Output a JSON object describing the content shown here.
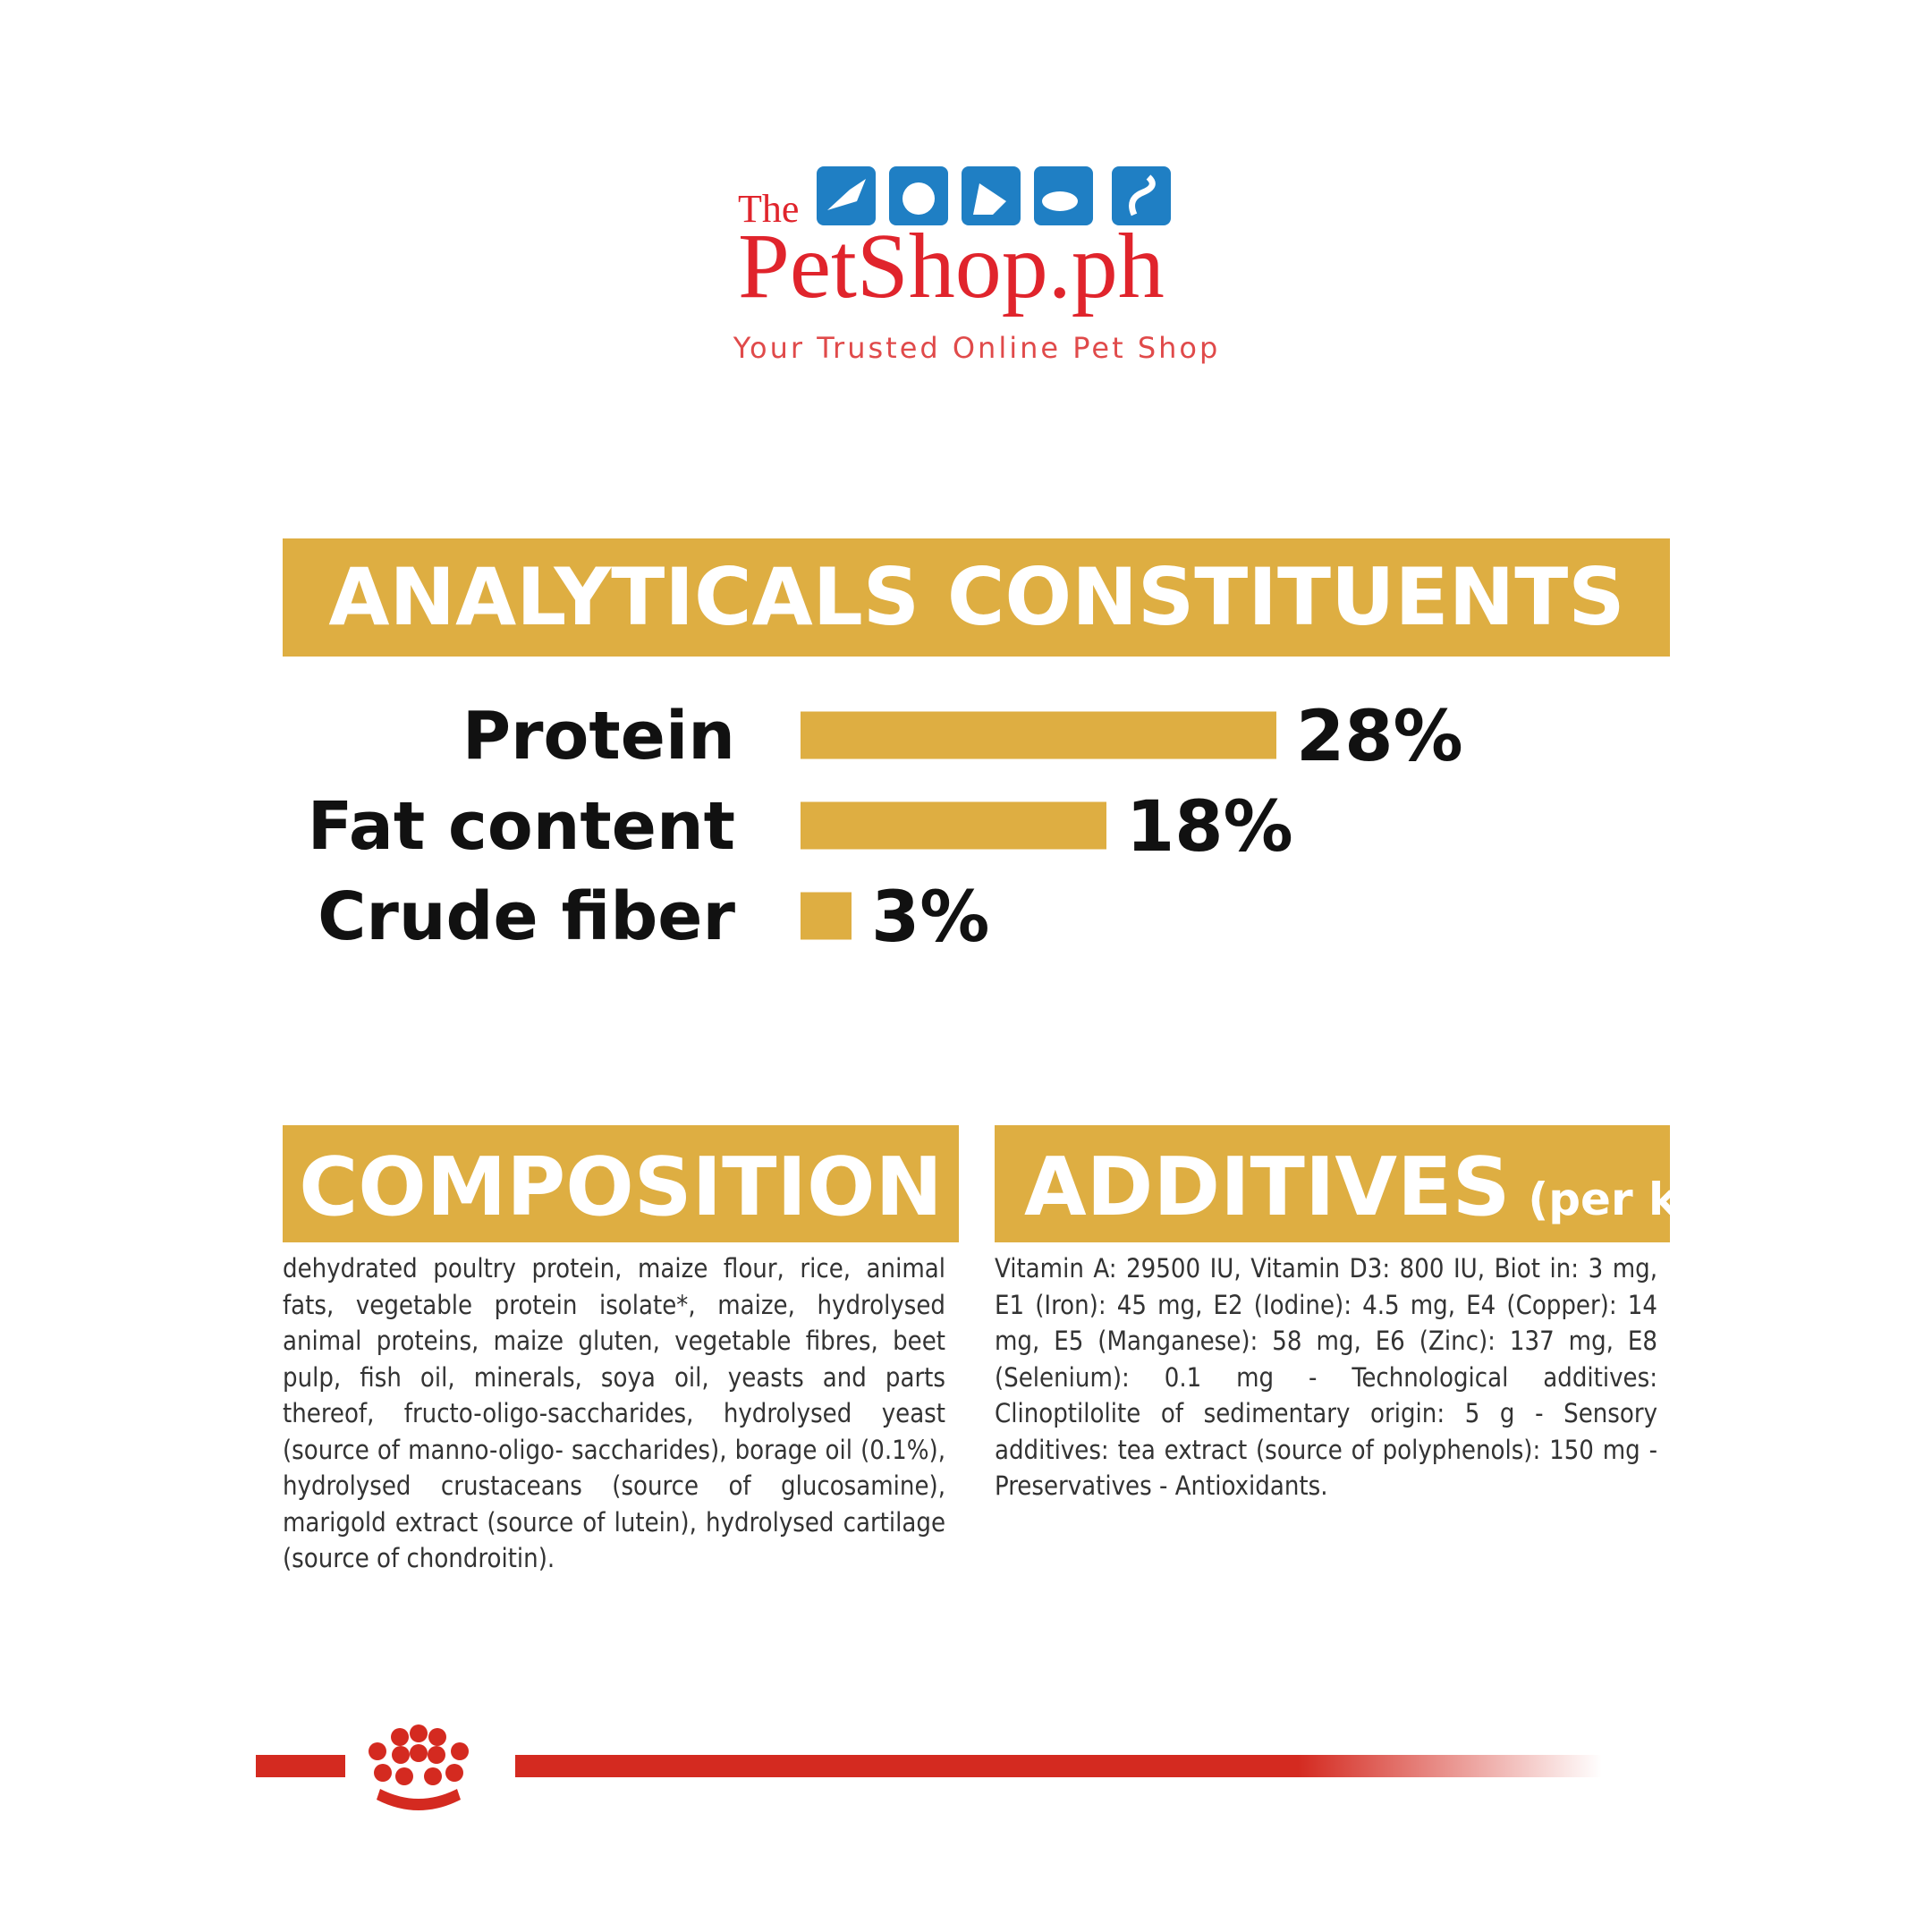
{
  "header": {
    "brand_prefix": "The",
    "brand": "PetShop.ph",
    "tagline": "Your Trusted Online Pet Shop"
  },
  "chart_data": {
    "type": "bar",
    "orientation": "horizontal",
    "title": "ANALYTICALS CONSTITUENTS",
    "categories": [
      "Protein",
      "Fat content",
      "Crude fiber"
    ],
    "values": [
      28,
      18,
      3
    ],
    "value_labels": [
      "28%",
      "18%",
      "3%"
    ],
    "color": "#deae42"
  },
  "composition": {
    "title": "COMPOSITION",
    "text": "dehydrated poultry protein, maize flour, rice, animal fats, vegetable protein isolate*, maize, hydrolysed animal proteins, maize gluten, vegetable fibres, beet pulp, fish oil, minerals, soya oil, yeasts and parts thereof, fructo-oligo-saccharides, hydrolysed yeast (source of manno-oligo- saccharides), borage oil (0.1%), hydrolysed crustaceans (source of glucosamine), marigold extract (source of lutein), hydrolysed cartilage (source of chondroitin)."
  },
  "additives": {
    "title": "ADDITIVES",
    "title_note": "(per kg)",
    "text": "Vitamin A: 29500 IU, Vitamin D3: 800 IU, Biot in: 3 mg, E1 (Iron): 45 mg, E2 (Iodine): 4.5 mg, E4 (Copper): 14 mg, E5 (Manganese): 58 mg, E6 (Zinc): 137 mg, E8 (Selenium): 0.1 mg - Technological additives: Clinoptilolite of sedimentary origin: 5 g - Sensory additives: tea extract (source of polyphenols): 150 mg - Preservatives - Antioxidants."
  }
}
